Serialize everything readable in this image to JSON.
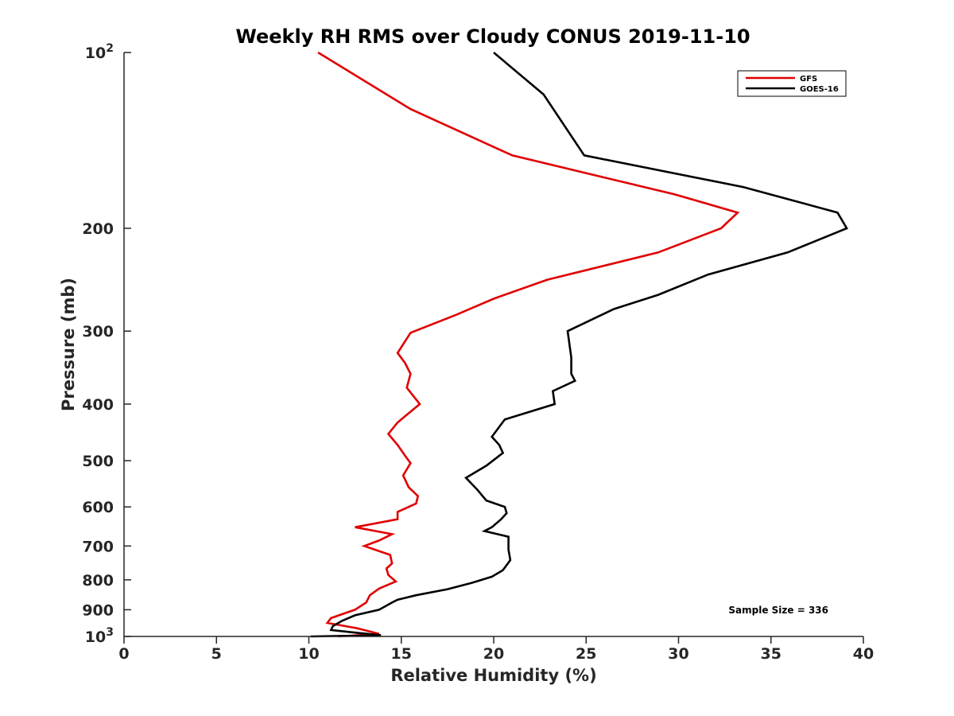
{
  "chart_data": {
    "type": "line",
    "title": "Weekly RH RMS over Cloudy CONUS 2019-11-10",
    "xlabel": "Relative Humidity (%)",
    "ylabel": "Pressure (mb)",
    "xlim": [
      0,
      40
    ],
    "ylim": [
      100,
      1000
    ],
    "y_scale": "log",
    "y_reversed": true,
    "grid": false,
    "legend_position": "top-right",
    "x_ticks": [
      "0",
      "5",
      "10",
      "15",
      "20",
      "25",
      "30",
      "35",
      "40"
    ],
    "y_ticks": [
      {
        "value": 100,
        "base": "10",
        "exp": "2"
      },
      {
        "value": 200,
        "label": "200"
      },
      {
        "value": 300,
        "label": "300"
      },
      {
        "value": 400,
        "label": "400"
      },
      {
        "value": 500,
        "label": "500"
      },
      {
        "value": 600,
        "label": "600"
      },
      {
        "value": 700,
        "label": "700"
      },
      {
        "value": 800,
        "label": "800"
      },
      {
        "value": 900,
        "label": "900"
      },
      {
        "value": 1000,
        "base": "10",
        "exp": "3"
      }
    ],
    "series": [
      {
        "name": "GFS",
        "color": "#e00000",
        "points": [
          [
            10.5,
            100
          ],
          [
            15.5,
            125
          ],
          [
            21.0,
            150
          ],
          [
            29.8,
            175
          ],
          [
            33.2,
            188
          ],
          [
            32.3,
            200
          ],
          [
            28.9,
            220
          ],
          [
            22.9,
            245
          ],
          [
            20.0,
            264
          ],
          [
            18.0,
            281
          ],
          [
            15.5,
            302
          ],
          [
            14.8,
            327
          ],
          [
            15.2,
            340
          ],
          [
            15.5,
            355
          ],
          [
            15.3,
            375
          ],
          [
            16.0,
            400
          ],
          [
            14.8,
            430
          ],
          [
            14.3,
            450
          ],
          [
            14.8,
            470
          ],
          [
            15.2,
            490
          ],
          [
            15.5,
            505
          ],
          [
            15.1,
            530
          ],
          [
            15.4,
            555
          ],
          [
            15.9,
            575
          ],
          [
            15.8,
            592
          ],
          [
            14.8,
            612
          ],
          [
            14.8,
            630
          ],
          [
            12.5,
            650
          ],
          [
            14.5,
            668
          ],
          [
            13.8,
            685
          ],
          [
            13.0,
            700
          ],
          [
            14.4,
            725
          ],
          [
            14.5,
            750
          ],
          [
            14.2,
            765
          ],
          [
            14.3,
            785
          ],
          [
            14.7,
            805
          ],
          [
            13.8,
            828
          ],
          [
            13.3,
            850
          ],
          [
            13.1,
            875
          ],
          [
            12.5,
            900
          ],
          [
            11.2,
            930
          ],
          [
            11.0,
            948
          ],
          [
            12.6,
            968
          ],
          [
            13.8,
            990
          ],
          [
            11.6,
            1000
          ]
        ]
      },
      {
        "name": "GOES-16",
        "color": "#000000",
        "points": [
          [
            20.0,
            100
          ],
          [
            22.7,
            118
          ],
          [
            24.9,
            150
          ],
          [
            33.5,
            170
          ],
          [
            38.6,
            188
          ],
          [
            39.1,
            200
          ],
          [
            35.9,
            220
          ],
          [
            31.6,
            240
          ],
          [
            28.9,
            260
          ],
          [
            26.5,
            275
          ],
          [
            24.0,
            300
          ],
          [
            24.2,
            333
          ],
          [
            24.2,
            355
          ],
          [
            24.4,
            365
          ],
          [
            23.2,
            380
          ],
          [
            23.3,
            400
          ],
          [
            20.6,
            425
          ],
          [
            19.9,
            455
          ],
          [
            20.3,
            470
          ],
          [
            20.5,
            485
          ],
          [
            19.6,
            510
          ],
          [
            18.5,
            535
          ],
          [
            19.1,
            560
          ],
          [
            19.6,
            585
          ],
          [
            20.6,
            600
          ],
          [
            20.7,
            615
          ],
          [
            20.4,
            630
          ],
          [
            19.9,
            650
          ],
          [
            19.5,
            660
          ],
          [
            20.8,
            675
          ],
          [
            20.8,
            710
          ],
          [
            20.9,
            740
          ],
          [
            20.5,
            770
          ],
          [
            19.9,
            790
          ],
          [
            18.8,
            810
          ],
          [
            17.5,
            830
          ],
          [
            15.8,
            850
          ],
          [
            14.8,
            865
          ],
          [
            14.5,
            875
          ],
          [
            13.8,
            900
          ],
          [
            12.5,
            920
          ],
          [
            11.8,
            940
          ],
          [
            11.3,
            960
          ],
          [
            11.2,
            975
          ],
          [
            12.5,
            985
          ],
          [
            13.9,
            995
          ],
          [
            10.1,
            1000
          ]
        ]
      }
    ],
    "annotation": "Sample Size = 336"
  }
}
